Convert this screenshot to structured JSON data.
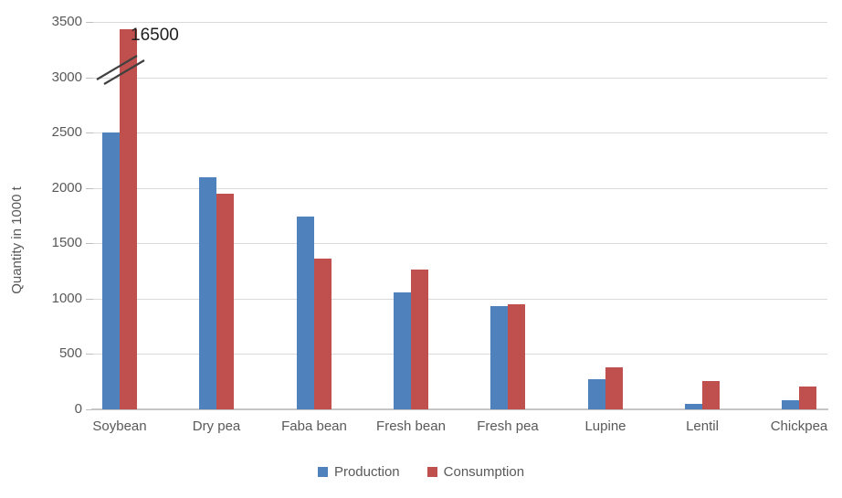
{
  "chart_data": {
    "type": "bar",
    "title": "",
    "xlabel": "",
    "ylabel": "Quantity in 1000 t",
    "categories": [
      "Soybean",
      "Dry pea",
      "Faba bean",
      "Fresh bean",
      "Fresh pea",
      "Lupine",
      "Lentil",
      "Chickpea"
    ],
    "series": [
      {
        "name": "Production",
        "color": "#4F81BD",
        "values": [
          2500,
          2100,
          1740,
          1060,
          930,
          270,
          50,
          80
        ]
      },
      {
        "name": "Consumption",
        "color": "#C0504D",
        "values": [
          16500,
          1950,
          1360,
          1260,
          950,
          380,
          260,
          210
        ]
      }
    ],
    "y_ticks": [
      0,
      500,
      1000,
      1500,
      2000,
      2500,
      3000,
      3500
    ],
    "ylim": [
      0,
      3500
    ],
    "grid": true,
    "legend_position": "bottom",
    "axis_break": {
      "series": "Consumption",
      "category": "Soybean",
      "true_value": 16500,
      "display_value": 3435,
      "annotation": "16500"
    }
  },
  "colors": {
    "production": "#4F81BD",
    "consumption": "#C0504D",
    "gridline": "#D9D9D9",
    "axis_line": "#C6C6C6",
    "tick_label": "#595959",
    "annotation": "#1F1F1F",
    "background": "#FFFFFF",
    "break_mark": "#404040"
  }
}
